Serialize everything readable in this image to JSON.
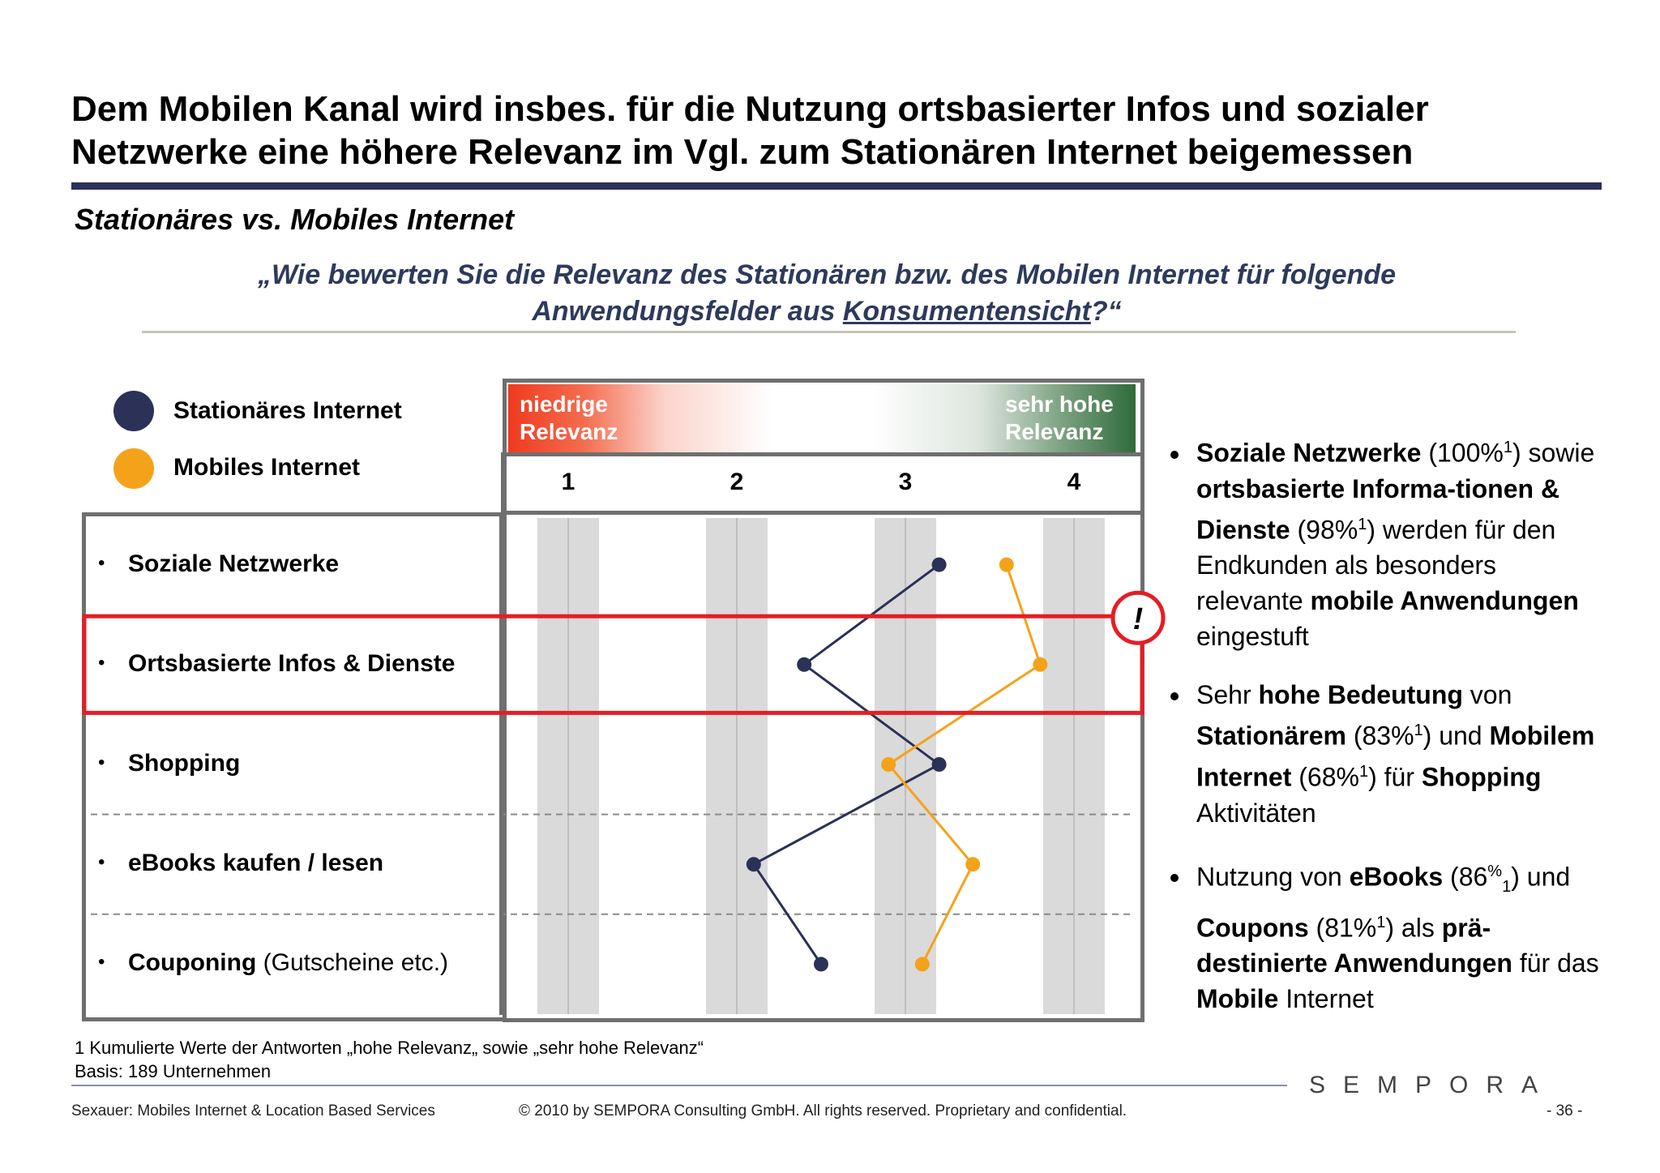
{
  "title": "Dem Mobilen Kanal wird insbes. für die Nutzung ortsbasierter Infos und sozialer Netzwerke eine höhere Relevanz im Vgl. zum Stationären Internet beigemessen",
  "subtitle": "Stationäres vs. Mobiles Internet",
  "question": {
    "before": "„Wie bewerten Sie die Relevanz des Stationären bzw. des Mobilen Internet für folgende Anwendungsfelder aus ",
    "underlined": "Konsumentensicht",
    "after": "?“"
  },
  "colors": {
    "stationaer": "#2b3157",
    "mobil": "#f5a21b",
    "highlight": "#e41e24",
    "frame": "#6f6f6f"
  },
  "scale": {
    "low_line1": "niedrige",
    "low_line2": "Relevanz",
    "high_line1": "sehr hohe",
    "high_line2": "Relevanz"
  },
  "highlight_mark": "!",
  "chart_data": {
    "type": "line",
    "orientation": "horizontal-profile",
    "x_ticks": [
      "1",
      "2",
      "3",
      "4"
    ],
    "xlim": [
      1,
      4
    ],
    "categories": [
      "Soziale Netzwerke",
      "Ortsbasierte Infos & Dienste",
      "Shopping",
      "eBooks kaufen / lesen",
      "Couponing"
    ],
    "category_suffix": [
      "",
      "",
      "",
      "",
      " (Gutscheine etc.)"
    ],
    "highlighted_category": "Ortsbasierte Infos & Dienste",
    "series": [
      {
        "name": "Stationäres Internet",
        "values": [
          3.2,
          2.4,
          3.2,
          2.1,
          2.5
        ]
      },
      {
        "name": "Mobiles Internet",
        "values": [
          3.6,
          3.8,
          2.9,
          3.4,
          3.1
        ]
      }
    ],
    "legend_position": "top-left"
  },
  "bullets": [
    [
      {
        "t": "Soziale Netzwerke",
        "b": true
      },
      {
        "t": " (100%"
      },
      {
        "t": "1",
        "sup": true
      },
      {
        "t": ") sowie "
      },
      {
        "t": "ortsbasierte Informa-tionen & Dienste",
        "b": true
      },
      {
        "t": " (98%"
      },
      {
        "t": "1",
        "sup": true
      },
      {
        "t": ") werden für den Endkunden als besonders relevante "
      },
      {
        "t": "mobile Anwendungen",
        "b": true
      },
      {
        "t": " eingestuft"
      }
    ],
    [
      {
        "t": "Sehr "
      },
      {
        "t": "hohe Bedeutung",
        "b": true
      },
      {
        "t": " von "
      },
      {
        "t": "Stationärem",
        "b": true
      },
      {
        "t": " (83%"
      },
      {
        "t": "1",
        "sup": true
      },
      {
        "t": ") und "
      },
      {
        "t": "Mobilem Internet",
        "b": true
      },
      {
        "t": " (68%"
      },
      {
        "t": "1",
        "sup": true
      },
      {
        "t": ") für "
      },
      {
        "t": "Shopping",
        "b": true
      },
      {
        "t": " Aktivitäten"
      }
    ],
    [
      {
        "t": "Nutzung von "
      },
      {
        "t": "eBooks",
        "b": true
      },
      {
        "t": " (86"
      },
      {
        "t": "%",
        "sup": true
      },
      {
        "t": "1",
        "sub": true
      },
      {
        "t": ") und "
      },
      {
        "t": "Coupons",
        "b": true
      },
      {
        "t": " (81%"
      },
      {
        "t": "1",
        "sup": true
      },
      {
        "t": ") als "
      },
      {
        "t": "prä-destinierte Anwendungen",
        "b": true
      },
      {
        "t": " für das "
      },
      {
        "t": "Mobile",
        "b": true
      },
      {
        "t": " Internet"
      }
    ]
  ],
  "footnote": {
    "line1": "1   Kumulierte Werte der Antworten „hohe Relevanz„ sowie „sehr hohe Relevanz“",
    "line2": "Basis: 189 Unternehmen"
  },
  "brand": "SEMPORA",
  "footer": {
    "source": "Sexauer: Mobiles Internet & Location Based Services",
    "copyright": "© 2010 by SEMPORA Consulting GmbH. All rights reserved. Proprietary and confidential.",
    "page": "- 36 -"
  }
}
